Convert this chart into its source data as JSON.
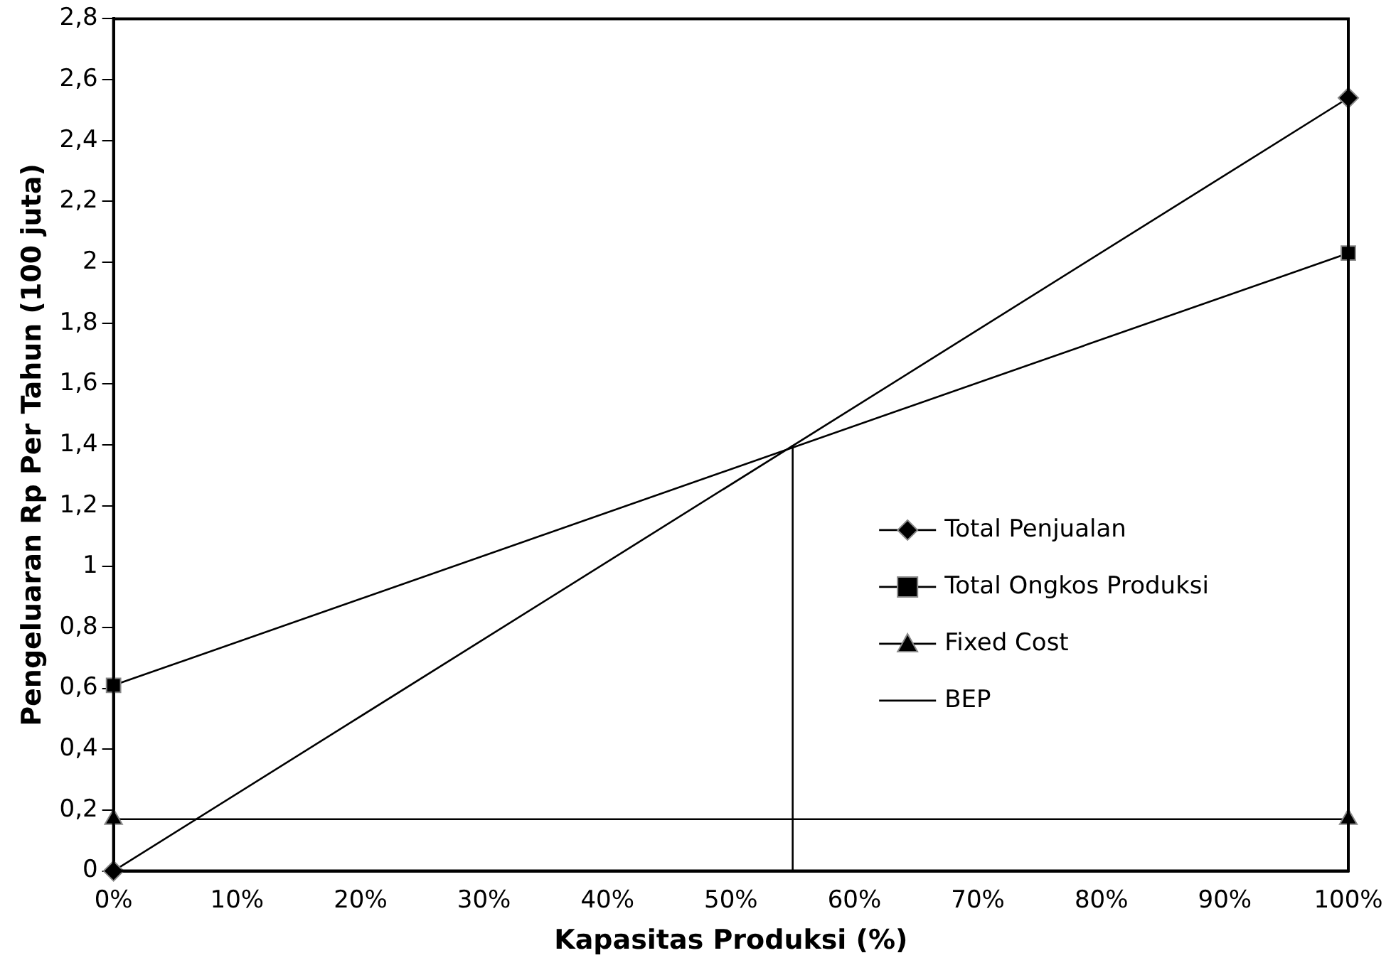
{
  "chart_data": {
    "type": "line",
    "xlabel": "Kapasitas Produksi (%)",
    "ylabel": "Pengeluaran Rp Per Tahun (100 juta)",
    "xlim": [
      0,
      100
    ],
    "xticks": [
      {
        "value": 0,
        "label": "0%"
      },
      {
        "value": 10,
        "label": "10%"
      },
      {
        "value": 20,
        "label": "20%"
      },
      {
        "value": 30,
        "label": "30%"
      },
      {
        "value": 40,
        "label": "40%"
      },
      {
        "value": 50,
        "label": "50%"
      },
      {
        "value": 60,
        "label": "60%"
      },
      {
        "value": 70,
        "label": "70%"
      },
      {
        "value": 80,
        "label": "80%"
      },
      {
        "value": 90,
        "label": "90%"
      },
      {
        "value": 100,
        "label": "100%"
      }
    ],
    "ylim": [
      0,
      2.8
    ],
    "yticks": [
      0,
      {
        "value": 0.2,
        "label": "0,2"
      },
      {
        "value": 0.4,
        "label": "0,4"
      },
      {
        "value": 0.6,
        "label": "0,6"
      },
      {
        "value": 0.8,
        "label": "0,8"
      },
      1,
      {
        "value": 1.2,
        "label": "1,2"
      },
      {
        "value": 1.4,
        "label": "1,4"
      },
      {
        "value": 1.6,
        "label": "1,6"
      },
      {
        "value": 1.8,
        "label": "1,8"
      },
      2,
      {
        "value": 2.2,
        "label": "2,2"
      },
      {
        "value": 2.4,
        "label": "2,4"
      },
      {
        "value": 2.6,
        "label": "2,6"
      },
      {
        "value": 2.8,
        "label": "2,8"
      }
    ],
    "grid": false,
    "legend": "right",
    "line_style": "solid",
    "series": [
      {
        "name": "Total Penjualan",
        "color": "#000000",
        "x": [
          0,
          100
        ],
        "values": [
          0,
          2.54
        ],
        "marker": "diamond"
      },
      {
        "name": "Total Ongkos Produksi",
        "color": "#000000",
        "x": [
          0,
          100
        ],
        "values": [
          0.61,
          2.03
        ],
        "marker": "square"
      },
      {
        "name": "Fixed Cost",
        "color": "#000000",
        "x": [
          0,
          100
        ],
        "values": [
          0.17,
          0.17
        ],
        "marker": "triangle"
      },
      {
        "name": "BEP",
        "color": "#000000",
        "x": [
          55,
          55
        ],
        "values": [
          0,
          1.4
        ],
        "marker": "none"
      }
    ]
  }
}
